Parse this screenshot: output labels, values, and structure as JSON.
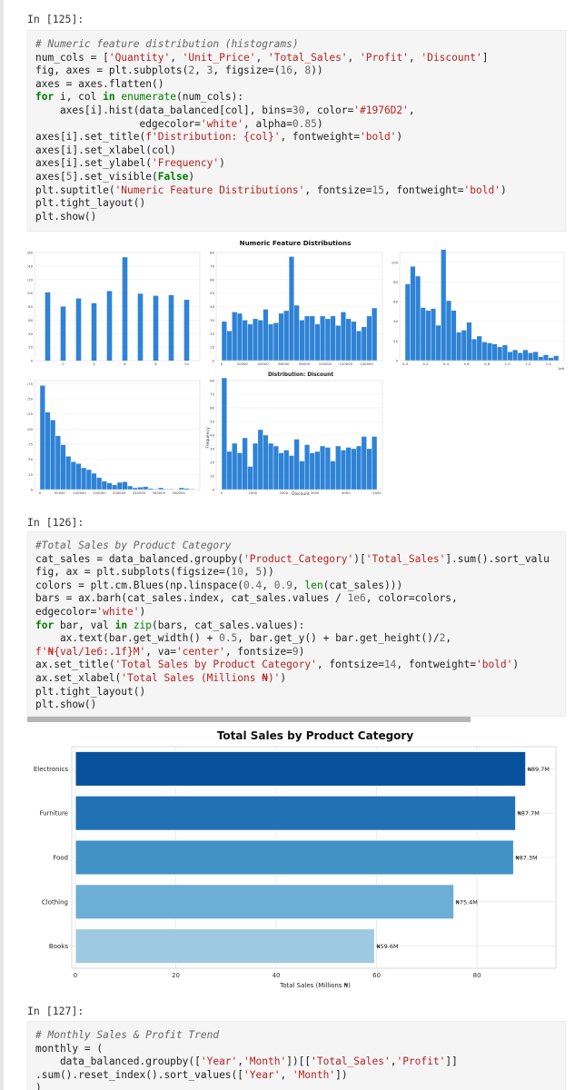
{
  "cells": [
    {
      "prompt": "In [125]:",
      "lines": [
        [
          [
            "cm",
            "# Numeric feature distribution (histograms)"
          ]
        ],
        [
          [
            "t",
            "num_cols = ["
          ],
          [
            "st",
            "'Quantity'"
          ],
          [
            "t",
            ", "
          ],
          [
            "st",
            "'Unit_Price'"
          ],
          [
            "t",
            ", "
          ],
          [
            "st",
            "'Total_Sales'"
          ],
          [
            "t",
            ", "
          ],
          [
            "st",
            "'Profit'"
          ],
          [
            "t",
            ", "
          ],
          [
            "st",
            "'Discount'"
          ],
          [
            "t",
            "]"
          ]
        ],
        [
          [
            "t",
            "fig, axes = plt.subplots("
          ],
          [
            "nu",
            "2"
          ],
          [
            "t",
            ", "
          ],
          [
            "nu",
            "3"
          ],
          [
            "t",
            ", figsize=("
          ],
          [
            "nu",
            "16"
          ],
          [
            "t",
            ", "
          ],
          [
            "nu",
            "8"
          ],
          [
            "t",
            "))"
          ]
        ],
        [
          [
            "t",
            "axes = axes.flatten()"
          ]
        ],
        [
          [
            "kw",
            "for"
          ],
          [
            "t",
            " i, col "
          ],
          [
            "kw",
            "in"
          ],
          [
            "t",
            " "
          ],
          [
            "bi",
            "enumerate"
          ],
          [
            "t",
            "(num_cols):"
          ]
        ],
        [
          [
            "t",
            "    axes[i].hist(data_balanced[col], bins="
          ],
          [
            "nu",
            "30"
          ],
          [
            "t",
            ", color="
          ],
          [
            "st",
            "'#1976D2'"
          ],
          [
            "t",
            ","
          ]
        ],
        [
          [
            "t",
            "                 edgecolor="
          ],
          [
            "st",
            "'white'"
          ],
          [
            "t",
            ", alpha="
          ],
          [
            "nu",
            "0.85"
          ],
          [
            "t",
            ")"
          ]
        ],
        [
          [
            "t",
            "axes[i].set_title("
          ],
          [
            "st",
            "f'Distribution: {col}'"
          ],
          [
            "t",
            ", fontweight="
          ],
          [
            "st",
            "'bold'"
          ],
          [
            "t",
            ")"
          ]
        ],
        [
          [
            "t",
            "axes[i].set_xlabel(col)"
          ]
        ],
        [
          [
            "t",
            "axes[i].set_ylabel("
          ],
          [
            "st",
            "'Frequency'"
          ],
          [
            "t",
            ")"
          ]
        ],
        [
          [
            "t",
            "axes["
          ],
          [
            "nu",
            "5"
          ],
          [
            "t",
            "].set_visible("
          ],
          [
            "kw",
            "False"
          ],
          [
            "t",
            ")"
          ]
        ],
        [
          [
            "t",
            "plt.suptitle("
          ],
          [
            "st",
            "'Numeric Feature Distributions'"
          ],
          [
            "t",
            ", fontsize="
          ],
          [
            "nu",
            "15"
          ],
          [
            "t",
            ", fontweight="
          ],
          [
            "st",
            "'bold'"
          ],
          [
            "t",
            ")"
          ]
        ],
        [
          [
            "t",
            "plt.tight_layout()"
          ]
        ],
        [
          [
            "t",
            "plt.show()"
          ]
        ]
      ]
    },
    {
      "prompt": "In [126]:",
      "lines": [
        [
          [
            "cm",
            "#Total Sales by Product Category"
          ]
        ],
        [
          [
            "t",
            "cat_sales = data_balanced.groupby("
          ],
          [
            "st",
            "'Product_Category'"
          ],
          [
            "t",
            ")["
          ],
          [
            "st",
            "'Total_Sales'"
          ],
          [
            "t",
            "].sum().sort_valu"
          ]
        ],
        [
          [
            "t",
            "fig, ax = plt.subplots(figsize=("
          ],
          [
            "nu",
            "10"
          ],
          [
            "t",
            ", "
          ],
          [
            "nu",
            "5"
          ],
          [
            "t",
            "))"
          ]
        ],
        [
          [
            "t",
            "colors = plt.cm.Blues(np.linspace("
          ],
          [
            "nu",
            "0.4"
          ],
          [
            "t",
            ", "
          ],
          [
            "nu",
            "0.9"
          ],
          [
            "t",
            ", "
          ],
          [
            "bi",
            "len"
          ],
          [
            "t",
            "(cat_sales)))"
          ]
        ],
        [
          [
            "t",
            "bars = ax.barh(cat_sales.index, cat_sales.values / "
          ],
          [
            "nu",
            "1e6"
          ],
          [
            "t",
            ", color=colors,"
          ]
        ],
        [
          [
            "t",
            "edgecolor="
          ],
          [
            "st",
            "'white'"
          ],
          [
            "t",
            ")"
          ]
        ],
        [
          [
            "kw",
            "for"
          ],
          [
            "t",
            " bar, val "
          ],
          [
            "kw",
            "in"
          ],
          [
            "t",
            " "
          ],
          [
            "bi",
            "zip"
          ],
          [
            "t",
            "(bars, cat_sales.values):"
          ]
        ],
        [
          [
            "t",
            "    ax.text(bar.get_width() + "
          ],
          [
            "nu",
            "0.5"
          ],
          [
            "t",
            ", bar.get_y() + bar.get_height()/"
          ],
          [
            "nu",
            "2"
          ],
          [
            "t",
            ","
          ]
        ],
        [
          [
            "st",
            "f'₦{val/1e6:.1f}M'"
          ],
          [
            "t",
            ", va="
          ],
          [
            "st",
            "'center'"
          ],
          [
            "t",
            ", fontsize="
          ],
          [
            "nu",
            "9"
          ],
          [
            "t",
            ")"
          ]
        ],
        [
          [
            "t",
            "ax.set_title("
          ],
          [
            "st",
            "'Total Sales by Product Category'"
          ],
          [
            "t",
            ", fontsize="
          ],
          [
            "nu",
            "14"
          ],
          [
            "t",
            ", fontweight="
          ],
          [
            "st",
            "'bold'"
          ],
          [
            "t",
            ")"
          ]
        ],
        [
          [
            "t",
            "ax.set_xlabel("
          ],
          [
            "st",
            "'Total Sales (Millions ₦)'"
          ],
          [
            "t",
            ")"
          ]
        ],
        [
          [
            "t",
            "plt.tight_layout()"
          ]
        ],
        [
          [
            "t",
            "plt.show()"
          ]
        ]
      ]
    },
    {
      "prompt": "In [127]:",
      "lines": [
        [
          [
            "cm",
            "# Monthly Sales & Profit Trend"
          ]
        ],
        [
          [
            "t",
            "monthly = ("
          ]
        ],
        [
          [
            "t",
            "    data_balanced.groupby(["
          ],
          [
            "st",
            "'Year'"
          ],
          [
            "t",
            ","
          ],
          [
            "st",
            "'Month'"
          ],
          [
            "t",
            "])[["
          ],
          [
            "st",
            "'Total_Sales'"
          ],
          [
            "t",
            ","
          ],
          [
            "st",
            "'Profit'"
          ],
          [
            "t",
            "]]"
          ]
        ],
        [
          [
            "t",
            ".sum().reset_index().sort_values(["
          ],
          [
            "st",
            "'Year'"
          ],
          [
            "t",
            ", "
          ],
          [
            "st",
            "'Month'"
          ],
          [
            "t",
            "])"
          ]
        ],
        [
          [
            "t",
            ")"
          ]
        ]
      ]
    }
  ],
  "chart_data": [
    {
      "type": "bar",
      "title": "Numeric Feature Distributions",
      "subplot": "Quantity",
      "color": "#1976D2",
      "x_ticks": [
        "2",
        "4",
        "6",
        "8",
        "10"
      ],
      "y_ticks": [
        "0",
        "20",
        "40",
        "60",
        "80",
        "100",
        "120",
        "140",
        "160"
      ],
      "ylim": [
        0,
        160
      ],
      "bins": [
        {
          "x": 1,
          "y": 101
        },
        {
          "x": 2,
          "y": 80
        },
        {
          "x": 3,
          "y": 92
        },
        {
          "x": 4,
          "y": 85
        },
        {
          "x": 5,
          "y": 103
        },
        {
          "x": 6,
          "y": 153
        },
        {
          "x": 7,
          "y": 99
        },
        {
          "x": 8,
          "y": 96
        },
        {
          "x": 9,
          "y": 97
        },
        {
          "x": 10,
          "y": 90
        }
      ]
    },
    {
      "type": "bar",
      "subplot": "Unit_Price",
      "color": "#1976D2",
      "x_ticks": [
        "0",
        "20000",
        "40000",
        "60000",
        "80000",
        "100000",
        "120000",
        "140000"
      ],
      "y_ticks": [
        "0",
        "10",
        "20",
        "30",
        "40",
        "50",
        "60",
        "70",
        "80"
      ],
      "xlim": [
        0,
        150000
      ],
      "ylim": [
        0,
        80
      ],
      "values": [
        29,
        22,
        36,
        35,
        30,
        27,
        31,
        30,
        38,
        27,
        28,
        35,
        37,
        77,
        41,
        30,
        33,
        33,
        27,
        33,
        31,
        33,
        26,
        36,
        31,
        29,
        22,
        25,
        33,
        39
      ]
    },
    {
      "type": "bar",
      "subplot": "Total_Sales",
      "color": "#1976D2",
      "x_ticks": [
        "0.0",
        "0.2",
        "0.4",
        "0.6",
        "0.8",
        "1.0",
        "1.2",
        "1.4"
      ],
      "offset_label": "1e6",
      "y_ticks": [
        "0",
        "20",
        "40",
        "60",
        "80",
        "100"
      ],
      "xlim": [
        0,
        1.5
      ],
      "ylim": [
        0,
        110
      ],
      "values": [
        78,
        96,
        86,
        54,
        51,
        53,
        36,
        113,
        61,
        51,
        29,
        31,
        39,
        22,
        25,
        19,
        18,
        17,
        14,
        16,
        9,
        11,
        8,
        11,
        8,
        9,
        4,
        6,
        3,
        5
      ]
    },
    {
      "type": "bar",
      "subplot": "Profit",
      "color": "#1976D2",
      "x_ticks": [
        "0",
        "50000",
        "100000",
        "150000",
        "200000",
        "250000",
        "300000",
        "350000"
      ],
      "y_ticks": [
        "0",
        "25",
        "50",
        "75",
        "100",
        "125",
        "150",
        "175"
      ],
      "xlim": [
        0,
        390000
      ],
      "ylim": [
        0,
        180
      ],
      "values": [
        172,
        128,
        115,
        89,
        74,
        55,
        46,
        43,
        36,
        33,
        27,
        20,
        14,
        11,
        8,
        12,
        13,
        6,
        3,
        4,
        5,
        2,
        1,
        3,
        1,
        1,
        0,
        3,
        2,
        1
      ]
    },
    {
      "type": "bar",
      "subplot": "Discount",
      "title": "Distribution: Discount",
      "xlabel": "Discount",
      "ylabel": "Frequency",
      "color": "#1976D2",
      "x_ticks": [
        "0",
        "1000",
        "2000",
        "3000",
        "4000",
        "5000"
      ],
      "y_ticks": [
        "0",
        "10",
        "20",
        "30",
        "40",
        "50",
        "60",
        "70",
        "80"
      ],
      "xlim": [
        0,
        5000
      ],
      "ylim": [
        0,
        80
      ],
      "values": [
        82,
        28,
        34,
        27,
        38,
        17,
        34,
        44,
        40,
        34,
        32,
        27,
        29,
        25,
        37,
        21,
        33,
        27,
        28,
        32,
        31,
        21,
        32,
        29,
        31,
        30,
        32,
        39,
        30,
        39
      ]
    },
    {
      "type": "bar",
      "orientation": "horizontal",
      "title": "Total Sales by Product Category",
      "xlabel": "Total Sales (Millions ₦)",
      "x_ticks": [
        "0",
        "20",
        "40",
        "60",
        "80"
      ],
      "xlim": [
        0,
        95
      ],
      "categories": [
        "Electronics",
        "Furniture",
        "Food",
        "Clothing",
        "Books"
      ],
      "values": [
        89.7,
        87.7,
        87.3,
        75.4,
        59.6
      ],
      "labels": [
        "₦89.7M",
        "₦87.7M",
        "₦87.3M",
        "₦75.4M",
        "₦59.6M"
      ],
      "colors": [
        "#08519c",
        "#2171b5",
        "#4292c6",
        "#6baed6",
        "#9ecae1"
      ]
    }
  ]
}
